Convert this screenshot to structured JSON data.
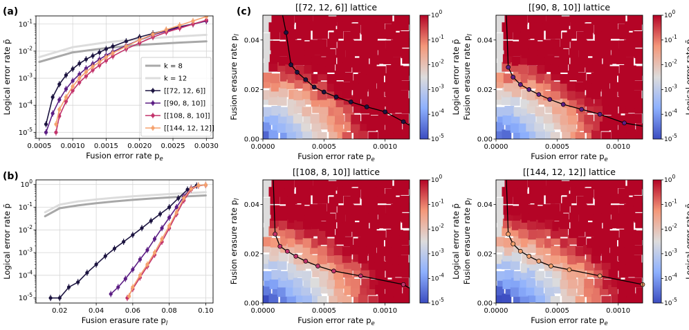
{
  "panel_labels": {
    "a": "(a)",
    "b": "(b)",
    "c": "(c)"
  },
  "chart_data": [
    {
      "id": "a",
      "type": "line",
      "xlabel": "Fusion error rate p_e",
      "ylabel": "Logical error rate p̄",
      "xscale": "linear",
      "yscale": "log",
      "xlim": [
        0.00045,
        0.0031
      ],
      "ylim": [
        6e-06,
        0.2
      ],
      "xticks": [
        0.0005,
        0.001,
        0.0015,
        0.002,
        0.0025,
        0.003
      ],
      "xtick_labels": [
        "0.0005",
        "0.0010",
        "0.0015",
        "0.0020",
        "0.0025",
        "0.0030"
      ],
      "yticks": [
        1e-05,
        0.0001,
        0.001,
        0.01,
        0.1
      ],
      "ytick_labels": [
        "10^-5",
        "10^-4",
        "10^-3",
        "10^-2",
        "10^-1"
      ],
      "legend_position": "lower-right",
      "series": [
        {
          "name": "k = 8",
          "color": "#a8a8a8",
          "style": "thick",
          "x": [
            0.0005,
            0.001,
            0.0015,
            0.002,
            0.0025,
            0.003
          ],
          "y": [
            0.004,
            0.009,
            0.013,
            0.017,
            0.02,
            0.023
          ]
        },
        {
          "name": "k = 12",
          "color": "#dcdcdc",
          "style": "thick",
          "x": [
            0.0005,
            0.001,
            0.0015,
            0.002,
            0.0025,
            0.003
          ],
          "y": [
            0.006,
            0.014,
            0.021,
            0.028,
            0.034,
            0.04
          ]
        },
        {
          "name": "[[72, 12, 6]]",
          "color": "#1c1440",
          "style": "marker",
          "x": [
            0.0006,
            0.0007,
            0.0008,
            0.0009,
            0.001,
            0.0011,
            0.0012,
            0.0013,
            0.0014,
            0.0015,
            0.0016,
            0.0018,
            0.002,
            0.0022,
            0.0024,
            0.0026,
            0.0028,
            0.003
          ],
          "y": [
            2e-05,
            0.0002,
            0.0006,
            0.0013,
            0.0022,
            0.0035,
            0.005,
            0.0067,
            0.009,
            0.012,
            0.015,
            0.023,
            0.033,
            0.045,
            0.06,
            0.08,
            0.1,
            0.13
          ]
        },
        {
          "name": "[[90, 8, 10]]",
          "color": "#5c1e84",
          "style": "marker",
          "x": [
            0.0006,
            0.0007,
            0.0008,
            0.0009,
            0.001,
            0.0011,
            0.0012,
            0.0013,
            0.0014,
            0.0015,
            0.0016,
            0.0018,
            0.002,
            0.0022,
            0.0024,
            0.0026,
            0.0028,
            0.003
          ],
          "y": [
            1e-05,
            5e-05,
            0.00016,
            0.0004,
            0.0008,
            0.0014,
            0.0023,
            0.0034,
            0.005,
            0.007,
            0.0095,
            0.016,
            0.026,
            0.04,
            0.055,
            0.075,
            0.1,
            0.13
          ]
        },
        {
          "name": "[[108, 8, 10]]",
          "color": "#c2336b",
          "style": "marker",
          "x": [
            0.00075,
            0.0008,
            0.0009,
            0.001,
            0.0011,
            0.0012,
            0.0013,
            0.0014,
            0.0015,
            0.0016,
            0.0018,
            0.002,
            0.0022,
            0.0024,
            0.0026,
            0.0028,
            0.003
          ],
          "y": [
            1e-05,
            4e-05,
            0.00014,
            0.00035,
            0.0007,
            0.0012,
            0.002,
            0.003,
            0.0045,
            0.0065,
            0.012,
            0.02,
            0.033,
            0.05,
            0.07,
            0.1,
            0.14
          ]
        },
        {
          "name": "[[144, 12, 12]]",
          "color": "#f5a26e",
          "style": "marker",
          "x": [
            0.00075,
            0.0008,
            0.0009,
            0.001,
            0.0011,
            0.0012,
            0.0013,
            0.0014,
            0.0015,
            0.0016,
            0.0018,
            0.002,
            0.0022,
            0.0024,
            0.0026,
            0.0028,
            0.003
          ],
          "y": [
            2e-05,
            7e-05,
            0.0002,
            0.0005,
            0.001,
            0.0017,
            0.0027,
            0.004,
            0.006,
            0.0085,
            0.015,
            0.026,
            0.042,
            0.062,
            0.09,
            0.13,
            0.19
          ]
        }
      ]
    },
    {
      "id": "b",
      "type": "line",
      "xlabel": "Fusion erasure rate p_l",
      "ylabel": "Logical error rate p̄",
      "xscale": "linear",
      "yscale": "log",
      "xlim": [
        0.007,
        0.104
      ],
      "ylim": [
        6e-06,
        1.6
      ],
      "xticks": [
        0.02,
        0.04,
        0.06,
        0.08,
        0.1
      ],
      "xtick_labels": [
        "0.02",
        "0.04",
        "0.06",
        "0.08",
        "0.10"
      ],
      "yticks": [
        1e-05,
        0.0001,
        0.001,
        0.01,
        0.1,
        1
      ],
      "ytick_labels": [
        "10^-5",
        "10^-4",
        "10^-3",
        "10^-2",
        "10^-1",
        "10^0"
      ],
      "series": [
        {
          "name": "k = 8",
          "color": "#a8a8a8",
          "style": "thick",
          "x": [
            0.012,
            0.02,
            0.03,
            0.04,
            0.05,
            0.06,
            0.07,
            0.08,
            0.09,
            0.1
          ],
          "y": [
            0.04,
            0.09,
            0.12,
            0.15,
            0.18,
            0.21,
            0.24,
            0.27,
            0.3,
            0.33
          ]
        },
        {
          "name": "k = 12",
          "color": "#dcdcdc",
          "style": "thick",
          "x": [
            0.012,
            0.02,
            0.03,
            0.04,
            0.05,
            0.06,
            0.07,
            0.08,
            0.09,
            0.1
          ],
          "y": [
            0.06,
            0.13,
            0.18,
            0.22,
            0.26,
            0.3,
            0.34,
            0.38,
            0.42,
            0.46
          ]
        },
        {
          "name": "[[72, 12, 6]]",
          "color": "#1c1440",
          "style": "marker",
          "x": [
            0.015,
            0.02,
            0.025,
            0.03,
            0.035,
            0.04,
            0.045,
            0.05,
            0.055,
            0.06,
            0.065,
            0.07,
            0.075,
            0.08,
            0.085,
            0.09,
            0.095,
            0.1
          ],
          "y": [
            1e-05,
            1e-05,
            3e-05,
            5e-05,
            0.00013,
            0.0003,
            0.0007,
            0.0015,
            0.003,
            0.006,
            0.012,
            0.025,
            0.05,
            0.1,
            0.25,
            0.6,
            0.9,
            0.95
          ]
        },
        {
          "name": "[[90, 8, 10]]",
          "color": "#5c1e84",
          "style": "marker",
          "x": [
            0.048,
            0.052,
            0.056,
            0.06,
            0.064,
            0.068,
            0.072,
            0.076,
            0.08,
            0.084,
            0.088,
            0.092,
            0.096,
            0.1
          ],
          "y": [
            1.5e-05,
            3e-05,
            7e-05,
            0.00018,
            0.0005,
            0.0013,
            0.004,
            0.012,
            0.035,
            0.1,
            0.3,
            0.7,
            0.9,
            0.95
          ]
        },
        {
          "name": "[[108, 8, 10]]",
          "color": "#c2336b",
          "style": "marker",
          "x": [
            0.057,
            0.06,
            0.064,
            0.068,
            0.072,
            0.076,
            0.08,
            0.084,
            0.088,
            0.092,
            0.096,
            0.1
          ],
          "y": [
            1e-05,
            2.5e-05,
            8e-05,
            0.00025,
            0.0008,
            0.003,
            0.012,
            0.05,
            0.2,
            0.6,
            0.9,
            0.95
          ]
        },
        {
          "name": "[[144, 12, 12]]",
          "color": "#f5a26e",
          "style": "marker",
          "x": [
            0.058,
            0.06,
            0.064,
            0.068,
            0.072,
            0.076,
            0.08,
            0.084,
            0.088,
            0.092,
            0.096,
            0.1
          ],
          "y": [
            1.2e-05,
            3e-05,
            0.0001,
            0.0003,
            0.001,
            0.004,
            0.015,
            0.06,
            0.25,
            0.65,
            0.92,
            0.96
          ]
        }
      ]
    },
    {
      "id": "c1",
      "type": "heatmap",
      "title": "[[72, 12, 6]] lattice",
      "xlabel": "Fusion error rate p_e",
      "ylabel": "Fusion erasure rate p_l",
      "xlim": [
        0,
        0.0012
      ],
      "ylim": [
        0,
        0.05
      ],
      "xticks": [
        0,
        0.0005,
        0.001
      ],
      "xtick_labels": [
        "0.0000",
        "0.0005",
        "0.0010"
      ],
      "yticks": [
        0,
        0.02,
        0.04
      ],
      "ytick_labels": [
        "0.00",
        "0.02",
        "0.04"
      ],
      "colorbar": {
        "label": "Logical error rate p̄",
        "scale": "log",
        "range": [
          1e-05,
          1
        ],
        "ticks": [
          "10^0",
          "10^-1",
          "10^-2",
          "10^-3",
          "10^-4",
          "10^-5"
        ]
      },
      "threshold": {
        "color": "#1c1440",
        "x": [
          0.00019,
          0.00023,
          0.00028,
          0.00035,
          0.00042,
          0.0005,
          0.0006,
          0.00072,
          0.00085,
          0.001,
          0.00115
        ],
        "y": [
          0.043,
          0.03,
          0.027,
          0.024,
          0.021,
          0.019,
          0.017,
          0.015,
          0.013,
          0.011,
          0.007
        ]
      }
    },
    {
      "id": "c2",
      "type": "heatmap",
      "title": "[[90, 8, 10]] lattice",
      "xlabel": "Fusion error rate p_e",
      "ylabel": "Fusion erasure rate p_l",
      "xlim": [
        0,
        0.0012
      ],
      "ylim": [
        0,
        0.05
      ],
      "xticks": [
        0,
        0.0005,
        0.001
      ],
      "xtick_labels": [
        "0.0000",
        "0.0005",
        "0.0010"
      ],
      "yticks": [
        0,
        0.02,
        0.04
      ],
      "ytick_labels": [
        "0.00",
        "0.02",
        "0.04"
      ],
      "colorbar": {
        "label": "Logical error rate p̄",
        "scale": "log",
        "range": [
          1e-05,
          1
        ],
        "ticks": [
          "10^0",
          "10^-1",
          "10^-2",
          "10^-3",
          "10^-4",
          "10^-5"
        ]
      },
      "threshold": {
        "color": "#5c1e84",
        "x": [
          0.0001,
          0.00014,
          0.0002,
          0.00027,
          0.00035,
          0.00044,
          0.00055,
          0.0007,
          0.00085,
          0.00105
        ],
        "y": [
          0.029,
          0.025,
          0.022,
          0.02,
          0.018,
          0.016,
          0.014,
          0.012,
          0.01,
          0.0065
        ]
      }
    },
    {
      "id": "c3",
      "type": "heatmap",
      "title": "[[108, 8, 10]] lattice",
      "xlabel": "Fusion error rate p_e",
      "ylabel": "Fusion erasure rate p_l",
      "xlim": [
        0,
        0.0012
      ],
      "ylim": [
        0,
        0.05
      ],
      "xticks": [
        0,
        0.0005,
        0.001
      ],
      "xtick_labels": [
        "0.0000",
        "0.0005",
        "0.0010"
      ],
      "yticks": [
        0,
        0.02,
        0.04
      ],
      "ytick_labels": [
        "0.00",
        "0.02",
        "0.04"
      ],
      "colorbar": {
        "label": "Logical error rate p̄",
        "scale": "log",
        "range": [
          1e-05,
          1
        ],
        "ticks": [
          "10^0",
          "10^-1",
          "10^-2",
          "10^-3",
          "10^-4",
          "10^-5"
        ]
      },
      "threshold": {
        "color": "#c2336b",
        "x": [
          0.0001,
          0.00014,
          0.0002,
          0.00027,
          0.00035,
          0.00045,
          0.00058,
          0.0008,
          0.00115
        ],
        "y": [
          0.028,
          0.023,
          0.021,
          0.019,
          0.017,
          0.015,
          0.013,
          0.011,
          0.0075
        ]
      }
    },
    {
      "id": "c4",
      "type": "heatmap",
      "title": "[[144, 12, 12]] lattice",
      "xlabel": "Fusion error rate p_e",
      "ylabel": "Fusion erasure rate p_l",
      "xlim": [
        0,
        0.0012
      ],
      "ylim": [
        0,
        0.05
      ],
      "xticks": [
        0,
        0.0005,
        0.001
      ],
      "xtick_labels": [
        "0.0000",
        "0.0005",
        "0.0010"
      ],
      "yticks": [
        0,
        0.02,
        0.04
      ],
      "ytick_labels": [
        "0.00",
        "0.02",
        "0.04"
      ],
      "colorbar": {
        "label": "Logical error rate p̄",
        "scale": "log",
        "range": [
          1e-05,
          1
        ],
        "ticks": [
          "10^0",
          "10^-1",
          "10^-2",
          "10^-3",
          "10^-4",
          "10^-5"
        ]
      },
      "threshold": {
        "color": "#f5a26e",
        "x": [
          0.0001,
          0.00014,
          0.0002,
          0.00027,
          0.00035,
          0.00045,
          0.0006,
          0.00085,
          0.0012
        ],
        "y": [
          0.028,
          0.024,
          0.021,
          0.019,
          0.017,
          0.015,
          0.0135,
          0.011,
          0.0075
        ]
      }
    }
  ]
}
